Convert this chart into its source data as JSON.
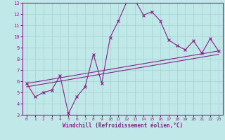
{
  "xlabel": "Windchill (Refroidissement éolien,°C)",
  "bg_color": "#c0e8e8",
  "grid_color": "#a8d4d4",
  "line_color": "#882288",
  "xlim_min": -0.5,
  "xlim_max": 23.5,
  "ylim_min": 3,
  "ylim_max": 13,
  "xticks": [
    0,
    1,
    2,
    3,
    4,
    5,
    6,
    7,
    8,
    9,
    10,
    11,
    12,
    13,
    14,
    15,
    16,
    17,
    18,
    19,
    20,
    21,
    22,
    23
  ],
  "yticks": [
    3,
    4,
    5,
    6,
    7,
    8,
    9,
    10,
    11,
    12,
    13
  ],
  "line1_x": [
    0,
    1,
    2,
    3,
    4,
    5,
    6,
    7,
    8,
    9,
    10,
    11,
    12,
    13,
    14,
    15,
    16,
    17,
    18,
    19,
    20,
    21,
    22,
    23
  ],
  "line1_y": [
    5.8,
    4.6,
    5.0,
    5.2,
    6.5,
    3.1,
    4.6,
    5.5,
    8.4,
    5.8,
    9.9,
    11.4,
    13.1,
    13.2,
    11.9,
    12.2,
    11.4,
    9.7,
    9.2,
    8.8,
    9.6,
    8.5,
    9.8,
    8.7
  ],
  "line2_x": [
    0,
    23
  ],
  "line2_y": [
    5.8,
    8.7
  ],
  "line3_x": [
    0,
    23
  ],
  "line3_y": [
    5.5,
    8.4
  ]
}
